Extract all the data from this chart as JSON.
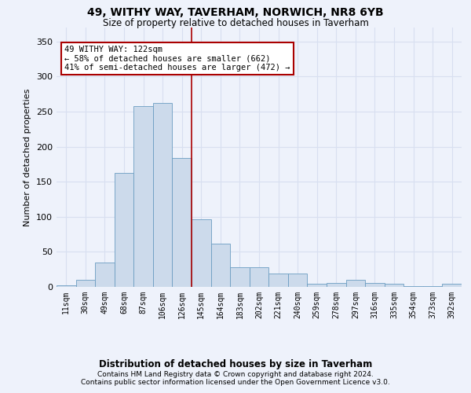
{
  "title": "49, WITHY WAY, TAVERHAM, NORWICH, NR8 6YB",
  "subtitle": "Size of property relative to detached houses in Taverham",
  "xlabel": "Distribution of detached houses by size in Taverham",
  "ylabel": "Number of detached properties",
  "bar_color": "#ccdaeb",
  "bar_edge_color": "#6b9dc2",
  "property_line_color": "#aa0000",
  "annotation_text": "49 WITHY WAY: 122sqm\n← 58% of detached houses are smaller (662)\n41% of semi-detached houses are larger (472) →",
  "annotation_box_color": "#ffffff",
  "annotation_box_edge": "#aa0000",
  "background_color": "#eef2fb",
  "grid_color": "#d8dff0",
  "categories": [
    "11sqm",
    "30sqm",
    "49sqm",
    "68sqm",
    "87sqm",
    "106sqm",
    "126sqm",
    "145sqm",
    "164sqm",
    "183sqm",
    "202sqm",
    "221sqm",
    "240sqm",
    "259sqm",
    "278sqm",
    "297sqm",
    "316sqm",
    "335sqm",
    "354sqm",
    "373sqm",
    "392sqm"
  ],
  "bar_values": [
    2,
    10,
    35,
    163,
    258,
    262,
    184,
    96,
    62,
    28,
    28,
    19,
    19,
    5,
    6,
    10,
    6,
    4,
    1,
    1,
    4
  ],
  "ylim": [
    0,
    370
  ],
  "yticks": [
    0,
    50,
    100,
    150,
    200,
    250,
    300,
    350
  ],
  "footnote1": "Contains HM Land Registry data © Crown copyright and database right 2024.",
  "footnote2": "Contains public sector information licensed under the Open Government Licence v3.0.",
  "red_line_index": 6.5
}
